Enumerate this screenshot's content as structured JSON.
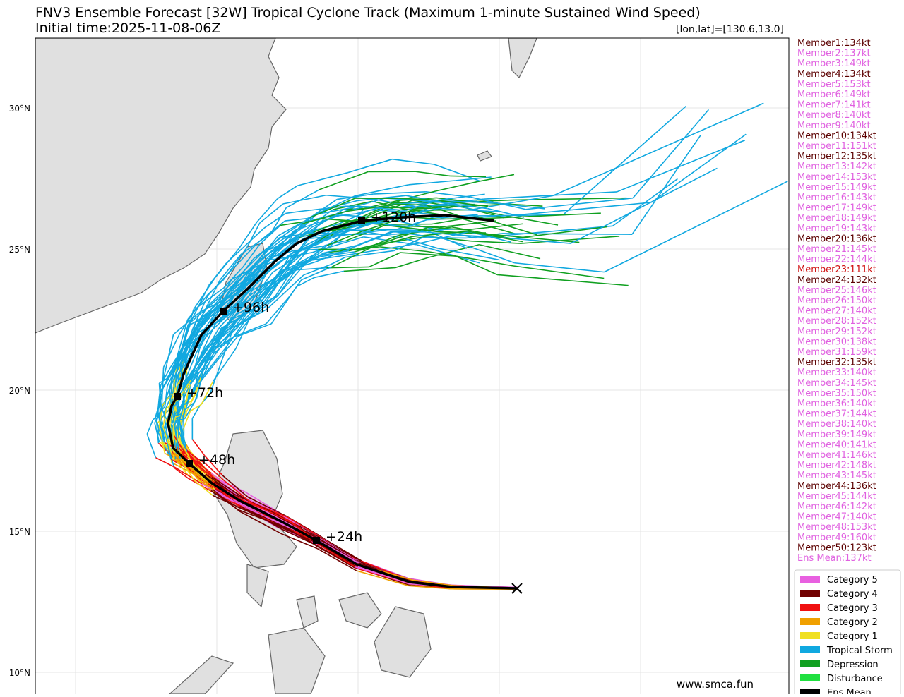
{
  "header": {
    "title": "FNV3 Ensemble Forecast [32W] Tropical Cyclone Track (Maximum 1-minute Sustained Wind Speed)",
    "subtitle": "Initial time:2025-11-08-06Z",
    "position": "[lon,lat]=[130.6,13.0]"
  },
  "map": {
    "lat_ticks": [
      "30°N",
      "25°N",
      "20°N",
      "15°N",
      "10°N"
    ],
    "time_labels": [
      "+24h",
      "+48h",
      "+72h",
      "+96h",
      "+120h"
    ],
    "watermark": "www.smca.fun"
  },
  "members": [
    {
      "label": "Member1:134kt",
      "color": "#5c0000"
    },
    {
      "label": "Member2:137kt",
      "color": "#e060e0"
    },
    {
      "label": "Member3:149kt",
      "color": "#e060e0"
    },
    {
      "label": "Member4:134kt",
      "color": "#5c0000"
    },
    {
      "label": "Member5:153kt",
      "color": "#e060e0"
    },
    {
      "label": "Member6:149kt",
      "color": "#e060e0"
    },
    {
      "label": "Member7:141kt",
      "color": "#e060e0"
    },
    {
      "label": "Member8:140kt",
      "color": "#e060e0"
    },
    {
      "label": "Member9:140kt",
      "color": "#e060e0"
    },
    {
      "label": "Member10:134kt",
      "color": "#5c0000"
    },
    {
      "label": "Member11:151kt",
      "color": "#e060e0"
    },
    {
      "label": "Member12:135kt",
      "color": "#5c0000"
    },
    {
      "label": "Member13:142kt",
      "color": "#e060e0"
    },
    {
      "label": "Member14:153kt",
      "color": "#e060e0"
    },
    {
      "label": "Member15:149kt",
      "color": "#e060e0"
    },
    {
      "label": "Member16:143kt",
      "color": "#e060e0"
    },
    {
      "label": "Member17:149kt",
      "color": "#e060e0"
    },
    {
      "label": "Member18:149kt",
      "color": "#e060e0"
    },
    {
      "label": "Member19:143kt",
      "color": "#e060e0"
    },
    {
      "label": "Member20:136kt",
      "color": "#5c0000"
    },
    {
      "label": "Member21:145kt",
      "color": "#e060e0"
    },
    {
      "label": "Member22:144kt",
      "color": "#e060e0"
    },
    {
      "label": "Member23:111kt",
      "color": "#d01010"
    },
    {
      "label": "Member24:132kt",
      "color": "#5c0000"
    },
    {
      "label": "Member25:146kt",
      "color": "#e060e0"
    },
    {
      "label": "Member26:150kt",
      "color": "#e060e0"
    },
    {
      "label": "Member27:140kt",
      "color": "#e060e0"
    },
    {
      "label": "Member28:152kt",
      "color": "#e060e0"
    },
    {
      "label": "Member29:152kt",
      "color": "#e060e0"
    },
    {
      "label": "Member30:138kt",
      "color": "#e060e0"
    },
    {
      "label": "Member31:159kt",
      "color": "#e060e0"
    },
    {
      "label": "Member32:135kt",
      "color": "#5c0000"
    },
    {
      "label": "Member33:140kt",
      "color": "#e060e0"
    },
    {
      "label": "Member34:145kt",
      "color": "#e060e0"
    },
    {
      "label": "Member35:150kt",
      "color": "#e060e0"
    },
    {
      "label": "Member36:140kt",
      "color": "#e060e0"
    },
    {
      "label": "Member37:144kt",
      "color": "#e060e0"
    },
    {
      "label": "Member38:140kt",
      "color": "#e060e0"
    },
    {
      "label": "Member39:149kt",
      "color": "#e060e0"
    },
    {
      "label": "Member40:141kt",
      "color": "#e060e0"
    },
    {
      "label": "Member41:146kt",
      "color": "#e060e0"
    },
    {
      "label": "Member42:148kt",
      "color": "#e060e0"
    },
    {
      "label": "Member43:145kt",
      "color": "#e060e0"
    },
    {
      "label": "Member44:136kt",
      "color": "#5c0000"
    },
    {
      "label": "Member45:144kt",
      "color": "#e060e0"
    },
    {
      "label": "Member46:142kt",
      "color": "#e060e0"
    },
    {
      "label": "Member47:140kt",
      "color": "#e060e0"
    },
    {
      "label": "Member48:153kt",
      "color": "#e060e0"
    },
    {
      "label": "Member49:160kt",
      "color": "#e060e0"
    },
    {
      "label": "Member50:123kt",
      "color": "#5c0000"
    },
    {
      "label": "Ens Mean:137kt",
      "color": "#e060e0"
    }
  ],
  "legend": [
    {
      "label": "Category 5",
      "color": "#e860e0"
    },
    {
      "label": "Category 4",
      "color": "#700000"
    },
    {
      "label": "Category 3",
      "color": "#f01010"
    },
    {
      "label": "Category 2",
      "color": "#f0a000"
    },
    {
      "label": "Category 1",
      "color": "#f0e020"
    },
    {
      "label": "Tropical Storm",
      "color": "#10a8e0"
    },
    {
      "label": "Depression",
      "color": "#10a020"
    },
    {
      "label": "Disturbance",
      "color": "#20e040"
    },
    {
      "label": "Ens Mean",
      "color": "#000000"
    }
  ]
}
